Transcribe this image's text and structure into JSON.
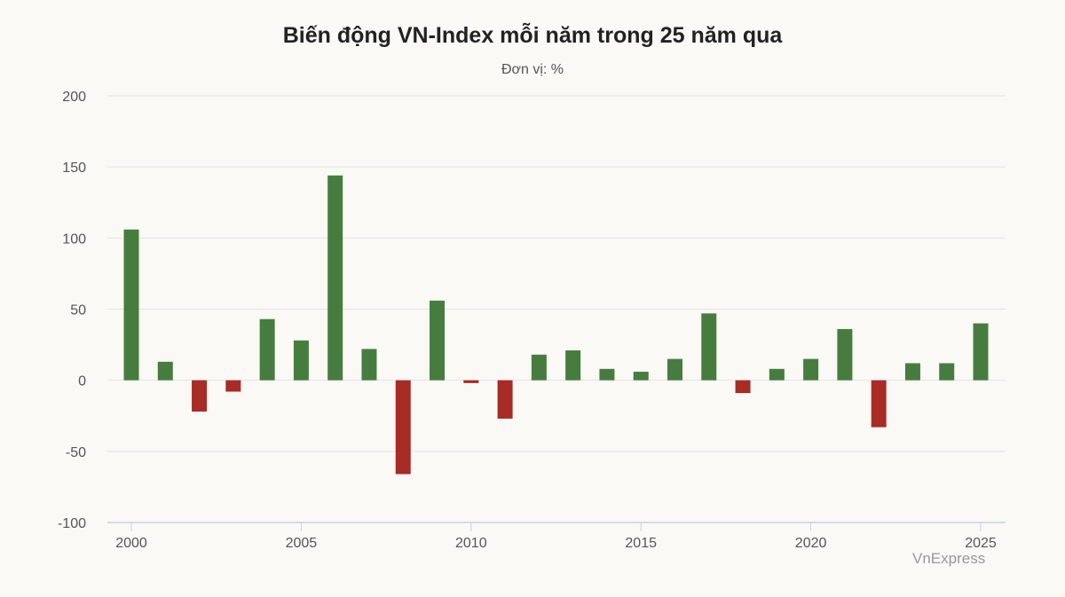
{
  "chart_data": {
    "type": "bar",
    "title": "Biến động VN-Index mỗi năm trong 25 năm qua",
    "subtitle": "Đơn vị: %",
    "source": "VnExpress",
    "x": [
      2000,
      2001,
      2002,
      2003,
      2004,
      2005,
      2006,
      2007,
      2008,
      2009,
      2010,
      2011,
      2012,
      2013,
      2014,
      2015,
      2016,
      2017,
      2018,
      2019,
      2020,
      2021,
      2022,
      2023,
      2024,
      2025
    ],
    "values": [
      106,
      13,
      -22,
      -8,
      43,
      28,
      144,
      22,
      -66,
      56,
      -2,
      -27,
      18,
      21,
      8,
      6,
      15,
      47,
      -9,
      8,
      15,
      36,
      -33,
      12,
      12,
      40
    ],
    "ylim": [
      -100,
      200
    ],
    "yticks": [
      -100,
      -50,
      0,
      50,
      100,
      150,
      200
    ],
    "xticks": [
      2000,
      2005,
      2010,
      2015,
      2020,
      2025
    ],
    "grid": true,
    "colors": {
      "positive": "#467d3f",
      "negative": "#a82b25",
      "grid": "#e3e3e3",
      "axis": "#c8d3e6"
    }
  }
}
